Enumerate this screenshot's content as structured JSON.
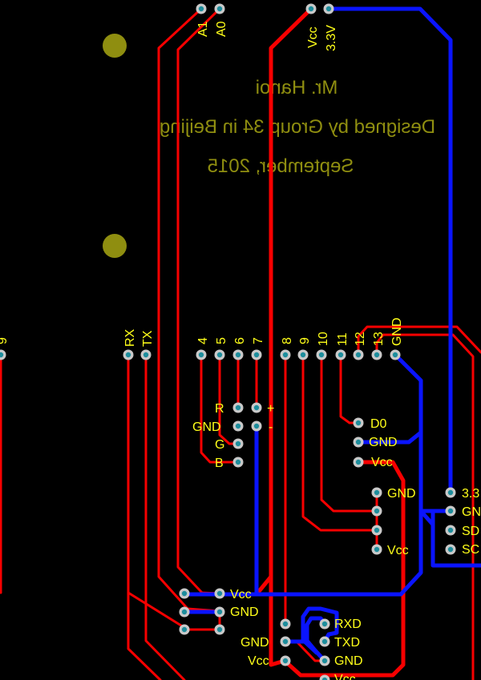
{
  "board": {
    "background": "#000000",
    "silkscreen_color": "#8f8e10",
    "label_color": "#ffff19",
    "top_trace_color": "#f70000",
    "bottom_trace_color": "#0a14ff",
    "mirrored_text": true
  },
  "credits": {
    "line1": "Mr. Hanoi",
    "line2": "Designed by Group 34 in Beijing",
    "line3": "September, 2015"
  },
  "top_header": {
    "analog_labels": [
      "A1",
      "A0"
    ],
    "power_labels": [
      "Vcc",
      "3.3V"
    ]
  },
  "main_header": {
    "edge_label": "9",
    "serial_labels": [
      "RX",
      "TX"
    ],
    "digital_labels": [
      "4",
      "5",
      "6",
      "7",
      "8",
      "9",
      "10",
      "11",
      "12",
      "13",
      "GND"
    ]
  },
  "rgb_led": {
    "labels": [
      "R",
      "GND",
      "G",
      "B"
    ],
    "polarity": [
      "+",
      "-"
    ]
  },
  "sensor_module": {
    "labels": [
      "D0",
      "GND",
      "Vcc"
    ]
  },
  "right_module": {
    "labels": [
      "GND",
      "Vcc"
    ]
  },
  "i2c_edge": {
    "labels": [
      "3.3",
      "GN",
      "SD",
      "SC"
    ]
  },
  "power_block": {
    "labels": [
      "Vcc",
      "GND"
    ]
  },
  "bt_module": {
    "left_labels": [
      "GND",
      "Vcc"
    ],
    "right_labels": [
      "RXD",
      "TXD",
      "GND",
      "Vcc"
    ]
  }
}
